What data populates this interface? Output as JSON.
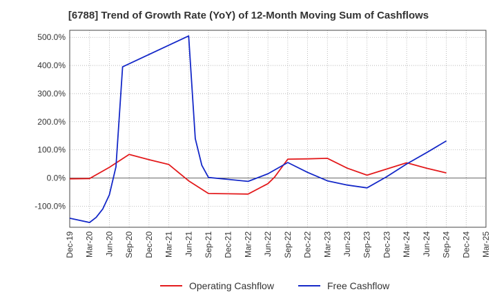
{
  "chart_data": {
    "type": "line",
    "title": "[6788]  Trend of Growth Rate (YoY) of 12-Month Moving Sum of Cashflows",
    "xlabel": "",
    "ylabel": "",
    "x_ticks": [
      "Dec-19",
      "Mar-20",
      "Jun-20",
      "Sep-20",
      "Dec-20",
      "Mar-21",
      "Jun-21",
      "Sep-21",
      "Dec-21",
      "Mar-22",
      "Jun-22",
      "Sep-22",
      "Dec-22",
      "Mar-23",
      "Jun-23",
      "Sep-23",
      "Dec-23",
      "Mar-24",
      "Jun-24",
      "Sep-24",
      "Dec-24",
      "Mar-25"
    ],
    "y_ticks": [
      {
        "value": 500,
        "label": "500.0%"
      },
      {
        "value": 400,
        "label": "400.0%"
      },
      {
        "value": 300,
        "label": "300.0%"
      },
      {
        "value": 200,
        "label": "200.0%"
      },
      {
        "value": 100,
        "label": "100.0%"
      },
      {
        "value": 0,
        "label": "0.0%"
      },
      {
        "value": -100,
        "label": "-100.0%"
      }
    ],
    "ylim": [
      -175,
      525
    ],
    "x_range": [
      0,
      21
    ],
    "grid": true,
    "legend_position": "bottom",
    "series": [
      {
        "name": "Operating Cashflow",
        "color": "#e31a1c",
        "points": [
          {
            "x": "Dec-19",
            "y": -3
          },
          {
            "x": "Mar-20",
            "y": -2
          },
          {
            "x": "Jun-20",
            "y": 38
          },
          {
            "x": "Sep-20",
            "y": 84
          },
          {
            "x": "Dec-20",
            "y": 65
          },
          {
            "x": "Mar-21",
            "y": 48
          },
          {
            "x": "Jun-21",
            "y": -10
          },
          {
            "x": "Sep-21",
            "y": -55
          },
          {
            "x": "Dec-21",
            "y": -56
          },
          {
            "x": "Mar-22",
            "y": -57
          },
          {
            "x": "Jun-22",
            "y": -20
          },
          {
            "x": "Jul-22",
            "y": 3
          },
          {
            "x": "Sep-22",
            "y": 67
          },
          {
            "x": "Dec-22",
            "y": 68
          },
          {
            "x": "Mar-23",
            "y": 70
          },
          {
            "x": "Jun-23",
            "y": 35
          },
          {
            "x": "Sep-23",
            "y": 10
          },
          {
            "x": "Dec-23",
            "y": 32
          },
          {
            "x": "Mar-24",
            "y": 54
          },
          {
            "x": "Jun-24",
            "y": 35
          },
          {
            "x": "Sep-24",
            "y": 18
          }
        ]
      },
      {
        "name": "Free Cashflow",
        "color": "#1428c8",
        "points": [
          {
            "x": "Dec-19",
            "y": -143
          },
          {
            "x": "Mar-20",
            "y": -158
          },
          {
            "x": "Apr-20",
            "y": -140
          },
          {
            "x": "May-20",
            "y": -110
          },
          {
            "x": "Jun-20",
            "y": -60
          },
          {
            "x": "Jul-20",
            "y": 40
          },
          {
            "x": "Aug-20",
            "y": 395
          },
          {
            "x": "Jun-21",
            "y": 505
          },
          {
            "x": "Jul-21",
            "y": 140
          },
          {
            "x": "Aug-21",
            "y": 45
          },
          {
            "x": "Sep-21",
            "y": 2
          },
          {
            "x": "Dec-21",
            "y": -5
          },
          {
            "x": "Mar-22",
            "y": -12
          },
          {
            "x": "Jun-22",
            "y": 15
          },
          {
            "x": "Sep-22",
            "y": 55
          },
          {
            "x": "Dec-22",
            "y": 20
          },
          {
            "x": "Mar-23",
            "y": -10
          },
          {
            "x": "Jun-23",
            "y": -25
          },
          {
            "x": "Sep-23",
            "y": -35
          },
          {
            "x": "Dec-23",
            "y": 5
          },
          {
            "x": "Mar-24",
            "y": 50
          },
          {
            "x": "Jun-24",
            "y": 90
          },
          {
            "x": "Sep-24",
            "y": 132
          }
        ]
      }
    ]
  }
}
